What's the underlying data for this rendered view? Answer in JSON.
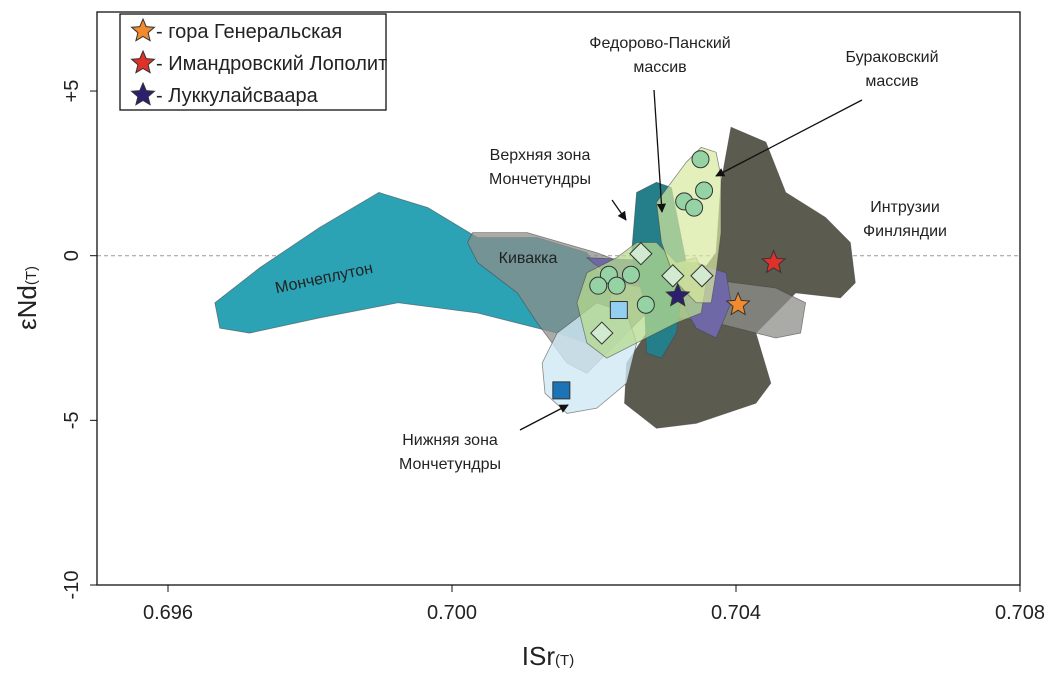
{
  "chart_data": {
    "type": "scatter",
    "x_label": "ISr",
    "x_label_sub": "(T)",
    "y_label": "εNd",
    "y_label_sub": "(T)",
    "xlim": [
      0.695,
      0.708
    ],
    "ylim": [
      -10,
      7.4
    ],
    "xticks": [
      0.696,
      {
        "value": 0.7,
        "label": "0.700"
      },
      0.704,
      0.708
    ],
    "yticks": [
      {
        "value": 5,
        "label": "+5"
      },
      0,
      -5,
      -10
    ],
    "zero_line": true,
    "legend": "upper left",
    "regions": [
      {
        "color": "#2ba3b5",
        "opacity": 1,
        "label": [
          "Мончеплутон"
        ],
        "x": [
          0.69666,
          0.69729,
          0.69813,
          0.69897,
          0.69966,
          0.70036,
          0.7012,
          0.7019,
          0.70225,
          0.70211,
          0.70148,
          0.70036,
          0.69924,
          0.69813,
          0.69715,
          0.69673
        ],
        "y": [
          -1.43,
          -0.37,
          0.85,
          1.92,
          1.46,
          0.55,
          0.55,
          0.09,
          -1.13,
          -2.8,
          -2.35,
          -1.74,
          -1.43,
          -1.89,
          -2.35,
          -2.2
        ]
      },
      {
        "color": "#5b5b50",
        "opacity": 1,
        "label": [
          "Интрузии",
          "Финляндии"
        ],
        "x": [
          0.70393,
          0.70442,
          0.7047,
          0.70526,
          0.70561,
          0.70568,
          0.70547,
          0.70484,
          0.70428,
          0.70449,
          0.70428,
          0.70344,
          0.70288,
          0.70243,
          0.70246,
          0.70274,
          0.7033,
          0.70372,
          0.70379
        ],
        "y": [
          3.9,
          3.45,
          1.92,
          1.16,
          0.4,
          -0.82,
          -1.28,
          -1.13,
          -2.35,
          -3.87,
          -4.48,
          -5.09,
          -5.24,
          -4.48,
          -3.26,
          -2.35,
          -1.13,
          0.09,
          2.23
        ]
      },
      {
        "color": "#8e8e8a",
        "opacity": 0.75,
        "label": [
          "Кивакка"
        ],
        "x": [
          0.70029,
          0.70106,
          0.70204,
          0.7026,
          0.70344,
          0.70456,
          0.70498,
          0.70491,
          0.70456,
          0.70372,
          0.70274,
          0.70218,
          0.7019,
          0.70162,
          0.7012,
          0.70092,
          0.70036,
          0.70022
        ],
        "y": [
          0.7,
          0.7,
          0.09,
          -0.37,
          -0.67,
          -0.98,
          -1.43,
          -2.35,
          -2.5,
          -2.04,
          -1.74,
          -2.96,
          -3.57,
          -3.26,
          -2.04,
          -1.13,
          -0.21,
          0.4
        ]
      },
      {
        "color": "#6e68a6",
        "opacity": 1,
        "x": [
          0.7019,
          0.70344,
          0.70386,
          0.70393,
          0.70372,
          0.70344,
          0.70316,
          0.70232
        ],
        "y": [
          -0.06,
          -0.21,
          -0.52,
          -1.43,
          -2.5,
          -2.2,
          -1.13,
          -0.82
        ]
      },
      {
        "color": "#247f8a",
        "opacity": 1,
        "x": [
          0.7026,
          0.70288,
          0.70309,
          0.70316,
          0.7033,
          0.70316,
          0.70295,
          0.70274,
          0.70271,
          0.70253
        ],
        "y": [
          1.92,
          2.23,
          2.07,
          1.31,
          -0.21,
          -2.35,
          -3.11,
          -2.96,
          -1.43,
          0.09
        ]
      },
      {
        "color": "#cfe8f5",
        "opacity": 0.8,
        "x": [
          0.70127,
          0.70148,
          0.70204,
          0.70246,
          0.7026,
          0.70246,
          0.70204,
          0.70162,
          0.70131
        ],
        "y": [
          -3.26,
          -2.35,
          -1.43,
          -1.74,
          -2.65,
          -3.87,
          -4.63,
          -4.79,
          -4.18
        ]
      },
      {
        "color": "#b5d98f",
        "opacity": 0.75,
        "x": [
          0.70176,
          0.7019,
          0.70232,
          0.7026,
          0.70288,
          0.70316,
          0.70344,
          0.70358,
          0.70351,
          0.70316,
          0.7026,
          0.70218,
          0.7019
        ],
        "y": [
          -1.43,
          -0.52,
          -0.06,
          0.4,
          0.4,
          -0.21,
          -0.06,
          -0.82,
          -1.74,
          -2.04,
          -2.65,
          -3.11,
          -2.65
        ]
      },
      {
        "color": "#d8eaa0",
        "opacity": 0.7,
        "x": [
          0.70288,
          0.7033,
          0.70351,
          0.70372,
          0.70379,
          0.70379,
          0.70372,
          0.70365,
          0.70344,
          0.70316,
          0.70295
        ],
        "y": [
          1.62,
          2.84,
          3.29,
          3.14,
          2.38,
          0.7,
          -0.52,
          -1.43,
          -1.43,
          -0.82,
          0.4
        ]
      }
    ],
    "annotations": [
      [
        "Верхняя зона",
        "Мончетундры"
      ],
      [
        "Федорово-Панский",
        "массив"
      ],
      [
        "Бураковский",
        "массив"
      ],
      [
        "Нижняя зона",
        "Мончетундры"
      ]
    ],
    "series": [
      {
        "marker": "circle",
        "color": "#95d3a5",
        "x": [
          0.7035,
          0.70355,
          0.70327,
          0.70341,
          0.70252,
          0.70221,
          0.70232,
          0.70206,
          0.70273
        ],
        "y": [
          2.93,
          1.98,
          1.65,
          1.46,
          -0.58,
          -0.58,
          -0.91,
          -0.91,
          -1.49
        ]
      },
      {
        "marker": "diamond",
        "color": "#d2ead0",
        "x": [
          0.70266,
          0.70311,
          0.70352,
          0.70211
        ],
        "y": [
          0.06,
          -0.61,
          -0.61,
          -2.35
        ]
      },
      {
        "marker": "square",
        "color": "#93cff0",
        "x": [
          0.70235
        ],
        "y": [
          -1.65
        ]
      },
      {
        "marker": "square",
        "color": "#1d73b8",
        "x": [
          0.70154
        ],
        "y": [
          -4.09
        ]
      },
      {
        "marker": "star",
        "color": "#f28a2e",
        "name": "- гора Генеральская",
        "x": [
          0.70403
        ],
        "y": [
          -1.49
        ]
      },
      {
        "marker": "star",
        "color": "#e0302a",
        "name": "- Имандровский Лополит",
        "x": [
          0.70453
        ],
        "y": [
          -0.21
        ]
      },
      {
        "marker": "star",
        "color": "#2b1f6e",
        "name": "- Луккулайсваара",
        "x": [
          0.70318
        ],
        "y": [
          -1.22
        ]
      }
    ]
  }
}
